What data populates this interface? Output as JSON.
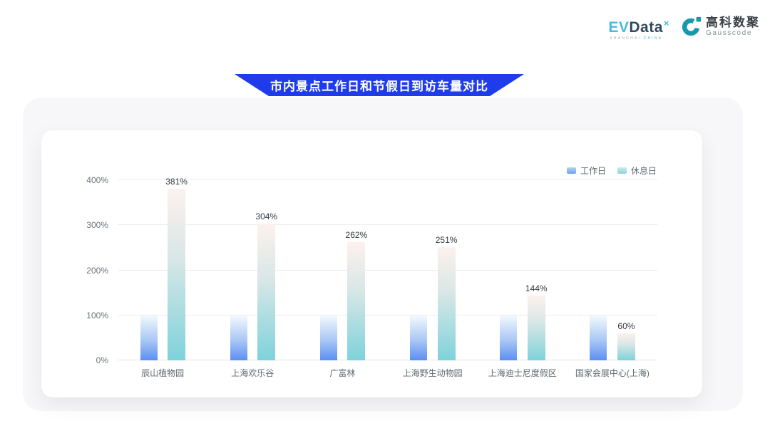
{
  "header": {
    "evdata_logo": {
      "ev": "EV",
      "data": "Data",
      "sup": "×",
      "subtext_left": "SHANGHAI",
      "subtext_right": "CHINA"
    },
    "gausscode_logo": {
      "cn": "高科数聚",
      "en": "Gausscode",
      "icon_color": "#1799ad"
    }
  },
  "banner": {
    "title": "市内景点工作日和节假日到访车量对比",
    "background_color": "#1e3ceb"
  },
  "chart_data": {
    "type": "bar",
    "title": "市内景点工作日和节假日到访车量对比",
    "categories": [
      "辰山植物园",
      "上海欢乐谷",
      "广富林",
      "上海野生动物园",
      "上海迪士尼度假区",
      "国家会展中心(上海)"
    ],
    "series": [
      {
        "name": "工作日",
        "values": [
          100,
          100,
          100,
          100,
          100,
          100
        ],
        "show_value_labels": false,
        "color_top": "#f3f9fe",
        "color_bottom": "#5b8ff2"
      },
      {
        "name": "休息日",
        "values": [
          381,
          304,
          262,
          251,
          144,
          60
        ],
        "show_value_labels": true,
        "color_top": "#fdf1ee",
        "color_bottom": "#7ed2db"
      }
    ],
    "value_suffix": "%",
    "yticks": [
      0,
      100,
      200,
      300,
      400
    ],
    "ytick_suffix": "%",
    "ylim": [
      0,
      400
    ],
    "grid": true,
    "legend_position": "top-right",
    "xlabel": "",
    "ylabel": ""
  }
}
